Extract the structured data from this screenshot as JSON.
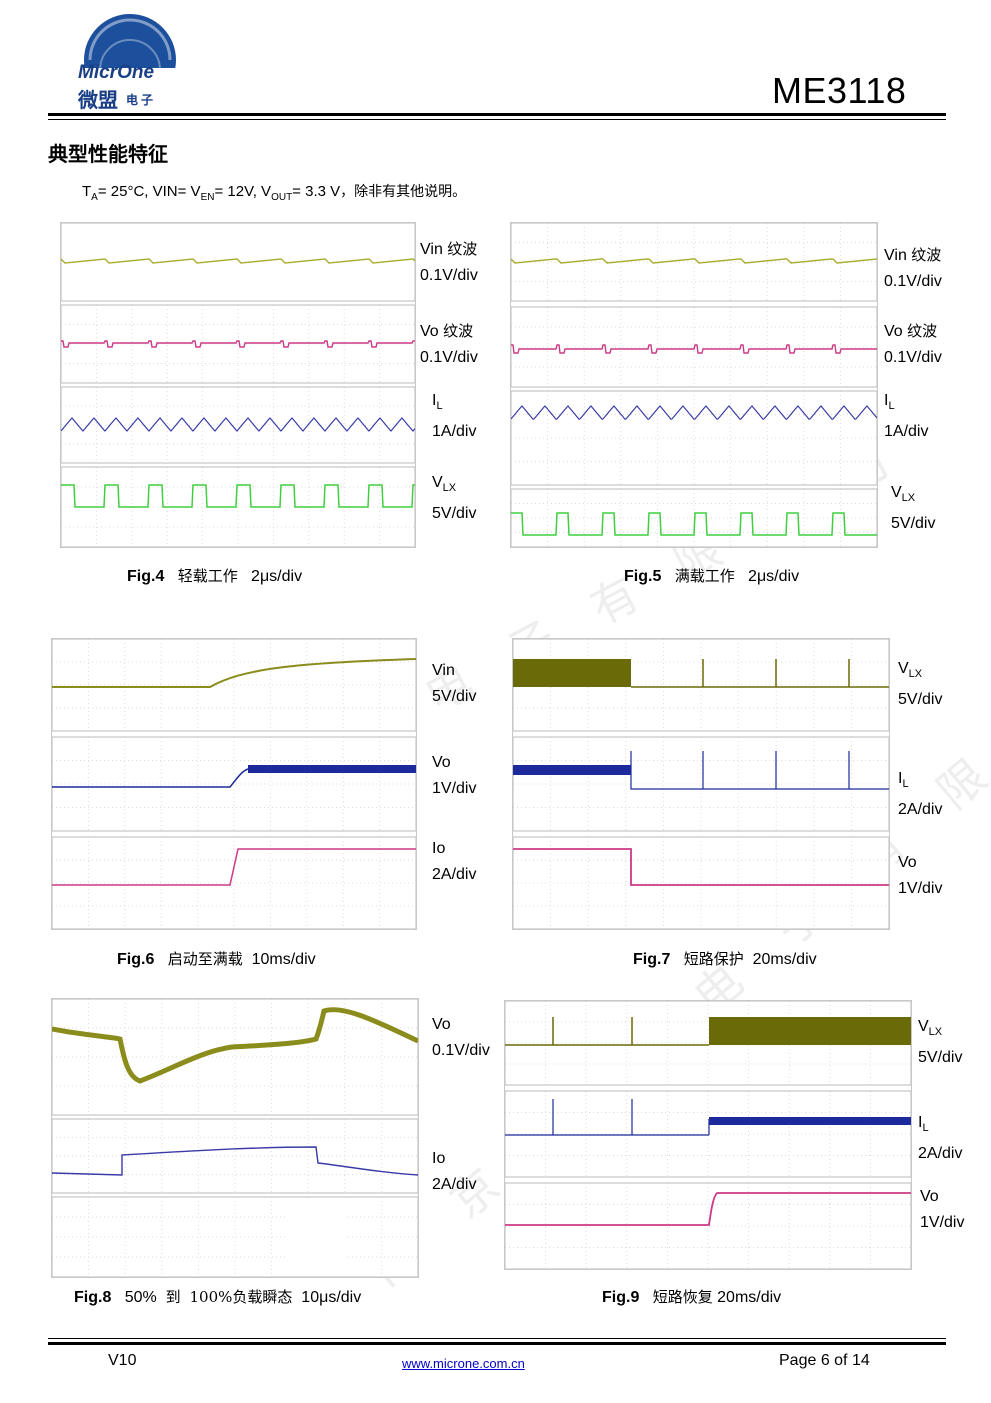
{
  "header": {
    "logo_brand": "MicrOne",
    "logo_cn": "微盟",
    "logo_cn_small": "电子",
    "product": "ME3118",
    "colors": {
      "logo_blue": "#1c4f9c",
      "logo_text": "#1a3f86"
    }
  },
  "section_title": "典型性能特征",
  "conditions": {
    "ta": "T",
    "ta_sub": "A",
    "ta_val": "= 25°C, VIN= V",
    "en_sub": "EN",
    "en_val": "= 12V, V",
    "out_sub": "OUT",
    "out_val": "= 3.3 V",
    "note": "，除非有其他说明。"
  },
  "figures": [
    {
      "id": "fig4",
      "labels": [
        {
          "main": "Vin",
          "cn": "纹波",
          "scale": "0.1V/div"
        },
        {
          "main": "Vo",
          "cn": "纹波",
          "scale": "0.1V/div"
        },
        {
          "main": "I",
          "sub": "L",
          "scale": "1A/div"
        },
        {
          "main": "V",
          "sub": "LX",
          "scale": "5V/div"
        }
      ],
      "caption": {
        "fig": "Fig.4",
        "text": "轻载工作",
        "scale": "2μs/div"
      }
    },
    {
      "id": "fig5",
      "labels": [
        {
          "main": "Vin",
          "cn": "纹波",
          "scale": "0.1V/div"
        },
        {
          "main": "Vo",
          "cn": "纹波",
          "scale": "0.1V/div"
        },
        {
          "main": "I",
          "sub": "L",
          "scale": "1A/div"
        },
        {
          "main": "V",
          "sub": "LX",
          "scale": "5V/div"
        }
      ],
      "caption": {
        "fig": "Fig.5",
        "text": "满载工作",
        "scale": "2μs/div"
      }
    },
    {
      "id": "fig6",
      "labels": [
        {
          "main": "Vin",
          "scale": "5V/div"
        },
        {
          "main": "Vo",
          "scale": "1V/div"
        },
        {
          "main": "Io",
          "scale": "2A/div"
        }
      ],
      "caption": {
        "fig": "Fig.6",
        "text": "启动至满载",
        "scale": "10ms/div"
      }
    },
    {
      "id": "fig7",
      "labels": [
        {
          "main": "V",
          "sub": "LX",
          "scale": "5V/div"
        },
        {
          "main": "I",
          "sub": "L",
          "scale": "2A/div"
        },
        {
          "main": "Vo",
          "scale": "1V/div"
        }
      ],
      "caption": {
        "fig": "Fig.7",
        "text": "短路保护",
        "scale": "20ms/div"
      }
    },
    {
      "id": "fig8",
      "labels": [
        {
          "main": "Vo",
          "scale": "0.1V/div"
        },
        {
          "main": "Io",
          "scale": "2A/div"
        }
      ],
      "caption": {
        "fig": "Fig.8",
        "pre": "50%",
        "text": "到",
        "post": "100%负载瞬态",
        "scale": "10μs/div"
      }
    },
    {
      "id": "fig9",
      "labels": [
        {
          "main": "V",
          "sub": "LX",
          "scale": "5V/div"
        },
        {
          "main": "I",
          "sub": "L",
          "scale": "2A/div"
        },
        {
          "main": "Vo",
          "scale": "1V/div"
        }
      ],
      "caption": {
        "fig": "Fig.9",
        "text": "短路恢复",
        "scale": "20ms/div"
      }
    }
  ],
  "trace_colors": {
    "yellow": "#a8ac2c",
    "magenta": "#cc3a86",
    "blue": "#3a3aa8",
    "green": "#3fcf3f",
    "olive": "#6b6a08",
    "navy": "#1c2a9c"
  },
  "watermark": [
    "南京微盟电子有限公司",
    "南京微盟电子有限公司"
  ],
  "footer": {
    "version": "V10",
    "url": "www.microne.com.cn",
    "page": "Page 6 of 14"
  }
}
